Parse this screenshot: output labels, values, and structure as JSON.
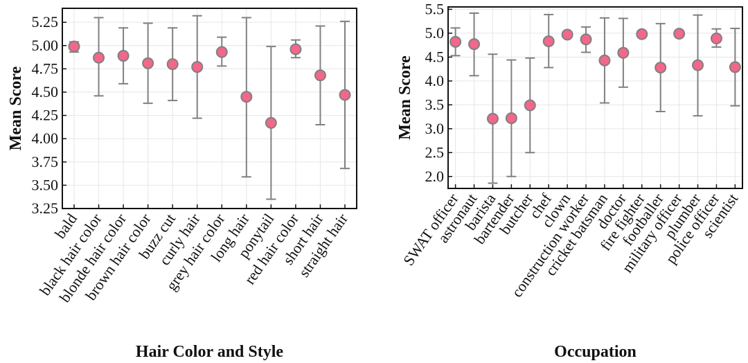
{
  "chart_data": [
    {
      "type": "scatter",
      "subtype": "point-with-error-bars",
      "xlabel": "Hair Color and Style",
      "ylabel": "Mean Score",
      "ylim": [
        3.25,
        5.4
      ],
      "yticks": [
        3.25,
        3.5,
        3.75,
        4.0,
        4.25,
        4.5,
        4.75,
        5.0,
        5.25
      ],
      "ytick_labels": [
        "3.25",
        "3.50",
        "3.75",
        "4.00",
        "4.25",
        "4.50",
        "4.75",
        "5.00",
        "5.25"
      ],
      "grid": true,
      "categories": [
        "bald",
        "black hair color",
        "blonde hair color",
        "brown hair color",
        "buzz cut",
        "curly hair",
        "grey hair color",
        "long hair",
        "ponytail",
        "red hair color",
        "short hair",
        "straight hair"
      ],
      "values": [
        4.99,
        4.87,
        4.89,
        4.81,
        4.8,
        4.77,
        4.93,
        4.45,
        4.17,
        4.96,
        4.68,
        4.47
      ],
      "err_low": [
        4.93,
        4.46,
        4.59,
        4.38,
        4.41,
        4.22,
        4.78,
        3.59,
        3.35,
        4.87,
        4.15,
        3.68
      ],
      "err_high": [
        5.04,
        5.3,
        5.19,
        5.24,
        5.19,
        5.32,
        5.09,
        5.3,
        4.99,
        5.06,
        5.21,
        5.26
      ],
      "marker_color": "#f2678a",
      "errbar_color": "#808080"
    },
    {
      "type": "scatter",
      "subtype": "point-with-error-bars",
      "xlabel": "Occupation",
      "ylabel": "Mean Score",
      "ylim": [
        1.75,
        5.55
      ],
      "yticks": [
        2.0,
        2.5,
        3.0,
        3.5,
        4.0,
        4.5,
        5.0,
        5.5
      ],
      "ytick_labels": [
        "2.0",
        "2.5",
        "3.0",
        "3.5",
        "4.0",
        "4.5",
        "5.0",
        "5.5"
      ],
      "grid": true,
      "categories": [
        "SWAT officer",
        "astronaut",
        "barista",
        "bartender",
        "butcher",
        "chef",
        "clown",
        "construction worker",
        "cricket batsman",
        "doctor",
        "fire fighter",
        "footballer",
        "military officer",
        "plumber",
        "police officer",
        "scientist"
      ],
      "values": [
        4.82,
        4.77,
        3.21,
        3.22,
        3.49,
        4.83,
        4.97,
        4.87,
        4.43,
        4.59,
        4.98,
        4.28,
        4.99,
        4.33,
        4.89,
        4.29
      ],
      "err_low": [
        4.53,
        4.11,
        1.86,
        2.0,
        2.5,
        4.28,
        4.92,
        4.6,
        3.54,
        3.87,
        4.93,
        3.36,
        4.95,
        3.27,
        4.71,
        3.48
      ],
      "err_high": [
        5.11,
        5.42,
        4.56,
        4.44,
        4.48,
        5.39,
        5.03,
        5.13,
        5.32,
        5.31,
        5.04,
        5.2,
        5.03,
        5.38,
        5.09,
        5.1
      ],
      "marker_color": "#f2678a",
      "errbar_color": "#808080"
    }
  ]
}
